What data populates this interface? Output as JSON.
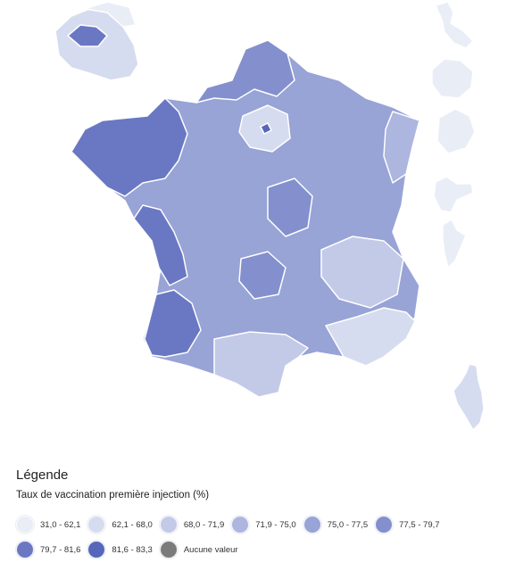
{
  "legend": {
    "title": "Légende",
    "subtitle": "Taux de vaccination première injection (%)",
    "items": [
      {
        "label": "31,0 - 62,1",
        "color": "#e9edf6"
      },
      {
        "label": "62,1 - 68,0",
        "color": "#d6dcef"
      },
      {
        "label": "68,0 - 71,9",
        "color": "#c3cae8"
      },
      {
        "label": "71,9 - 75,0",
        "color": "#acb6df"
      },
      {
        "label": "75,0 - 77,5",
        "color": "#98a3d6"
      },
      {
        "label": "77,5 - 79,7",
        "color": "#8390cd"
      },
      {
        "label": "79,7 - 81,6",
        "color": "#6a78c3"
      },
      {
        "label": "81,6 - 83,3",
        "color": "#5566bb"
      },
      {
        "label": "Aucune valeur",
        "color": "#7b7b7b"
      }
    ]
  },
  "map": {
    "regions": [
      {
        "id": "metropole",
        "level": 5
      },
      {
        "id": "bretagne",
        "level": 7
      },
      {
        "id": "vendee-charente",
        "level": 7
      },
      {
        "id": "landes",
        "level": 7
      },
      {
        "id": "normandie-nord",
        "level": 6
      },
      {
        "id": "picardie",
        "level": 5
      },
      {
        "id": "ile-de-france",
        "level": 2
      },
      {
        "id": "paris",
        "level": 8
      },
      {
        "id": "rhone-alpes",
        "level": 3
      },
      {
        "id": "paca",
        "level": 2
      },
      {
        "id": "occitanie-sud",
        "level": 3
      },
      {
        "id": "alsace",
        "level": 4
      },
      {
        "id": "centre-val",
        "level": 6
      },
      {
        "id": "limousin",
        "level": 6
      },
      {
        "id": "idf-inset",
        "level": 2
      },
      {
        "id": "idf-inset-paris",
        "level": 7
      },
      {
        "id": "idf-inset-east",
        "level": 1
      },
      {
        "id": "guadeloupe",
        "level": 1
      },
      {
        "id": "reunion",
        "level": 1
      },
      {
        "id": "martinique",
        "level": 1
      },
      {
        "id": "guyane",
        "level": 1
      },
      {
        "id": "mayotte",
        "level": 1
      },
      {
        "id": "corse",
        "level": 2
      }
    ]
  }
}
